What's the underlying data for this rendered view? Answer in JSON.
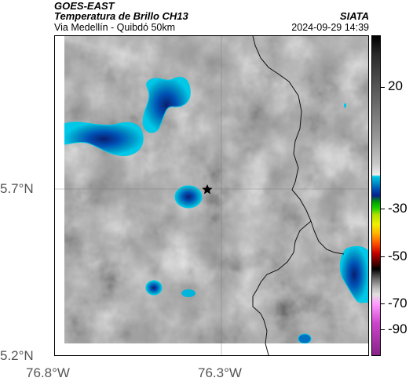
{
  "header": {
    "satellite": "GOES-EAST",
    "product": "Temperatura de Brillo CH13",
    "route": "Via Medellín - Quibdó 50km",
    "agency": "SIATA",
    "datetime": "2024-09-29 14:39"
  },
  "map": {
    "lat_labels": [
      "5.7°N",
      "5.2°N"
    ],
    "lon_labels": [
      "76.8°W",
      "76.3°W"
    ],
    "marker": "star-marker"
  },
  "colorbar": {
    "tick_labels": [
      "20",
      "-30",
      "-50",
      "-70",
      "-90"
    ]
  }
}
